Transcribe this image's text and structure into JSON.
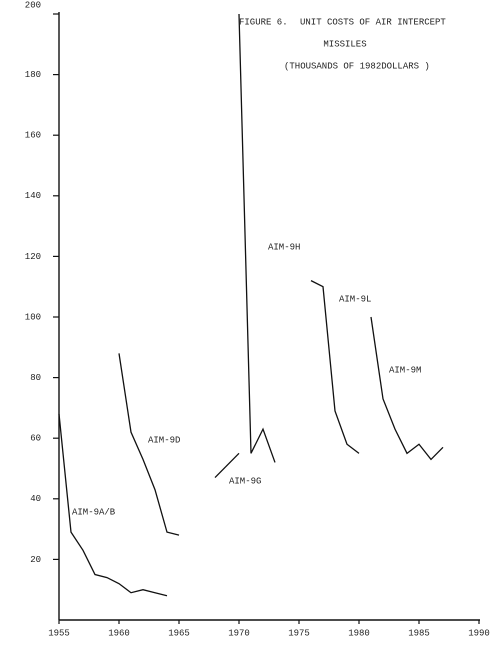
{
  "chart_data": {
    "type": "line",
    "title_lines": [
      "FIGURE 6.",
      "UNIT COSTS OF AIR INTERCEPT",
      "MISSILES",
      "(THOUSANDS OF 1982DOLLARS )"
    ],
    "xlim": [
      1955,
      1990
    ],
    "xticks": [
      1955,
      1960,
      1965,
      1970,
      1975,
      1980,
      1985,
      1990
    ],
    "ylim": [
      0,
      200
    ],
    "yticks": [
      20,
      40,
      60,
      80,
      100,
      120,
      140,
      160,
      180,
      200
    ],
    "series": [
      {
        "name": "AIM-9A/B",
        "color": "#111111",
        "x": [
          1955,
          1956,
          1957,
          1958,
          1959,
          1960,
          1961,
          1962,
          1963,
          1964
        ],
        "values": [
          68,
          29,
          23,
          15,
          14,
          12,
          9,
          10,
          9,
          8
        ]
      },
      {
        "name": "AIM-9D",
        "color": "#111111",
        "x": [
          1960,
          1961,
          1962,
          1963,
          1964,
          1965
        ],
        "values": [
          88,
          62,
          53,
          43,
          29,
          28
        ]
      },
      {
        "name": "AIM-9G",
        "color": "#111111",
        "x": [
          1968,
          1969,
          1970
        ],
        "values": [
          47,
          51,
          55
        ]
      },
      {
        "name": "AIM-9H",
        "color": "#111111",
        "x": [
          1970,
          1971,
          1972,
          1973
        ],
        "values": [
          200,
          55,
          63,
          52
        ]
      },
      {
        "name": "AIM-9L",
        "color": "#111111",
        "x": [
          1976,
          1977,
          1978,
          1979,
          1980
        ],
        "values": [
          112,
          110,
          69,
          58,
          55
        ]
      },
      {
        "name": "AIM-9M",
        "color": "#111111",
        "x": [
          1981,
          1982,
          1983,
          1984,
          1985,
          1986,
          1987
        ],
        "values": [
          100,
          73,
          63,
          55,
          58,
          53,
          57
        ]
      }
    ]
  }
}
